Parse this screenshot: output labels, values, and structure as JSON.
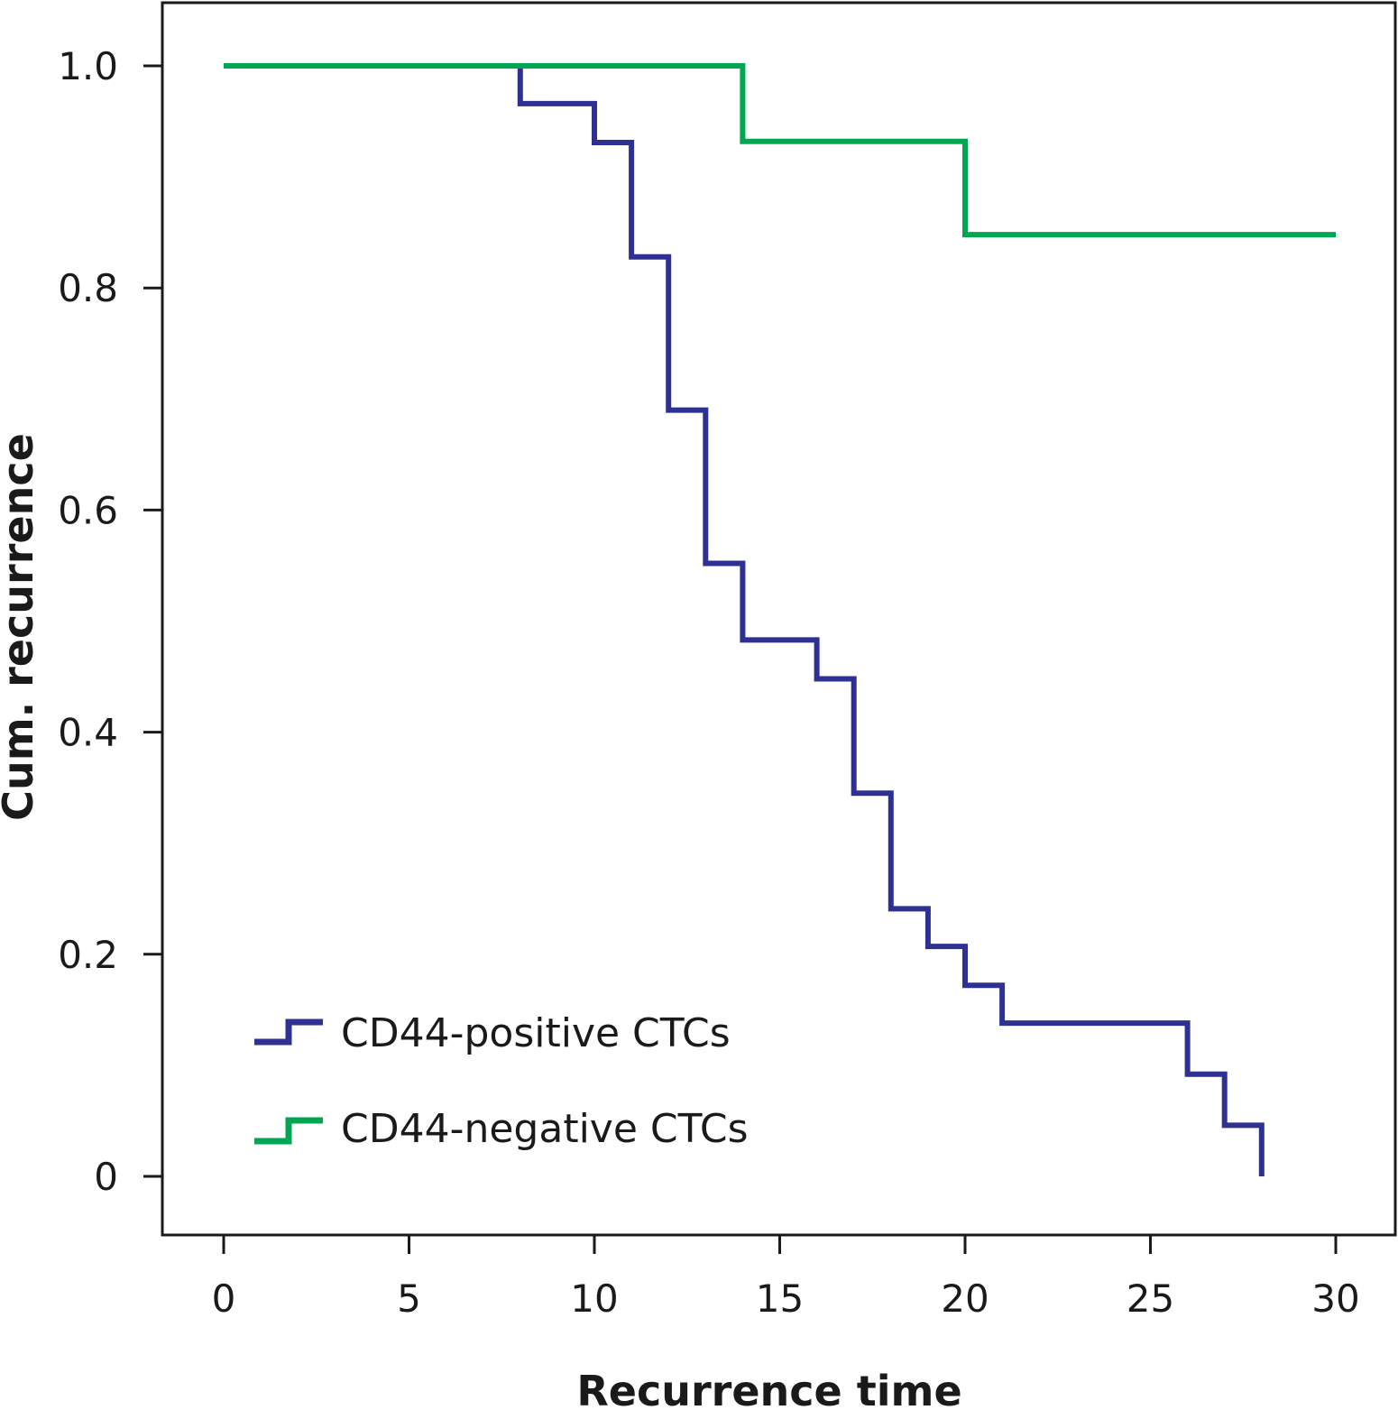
{
  "chart_data": {
    "type": "line",
    "step": true,
    "xlabel": "Recurrence time",
    "ylabel": "Cum. recurrence",
    "xlim": [
      0,
      30
    ],
    "ylim": [
      0,
      1.0
    ],
    "x_ticks": [
      0,
      5,
      10,
      15,
      20,
      25,
      30
    ],
    "x_tick_labels": [
      "0",
      "5",
      "10",
      "15",
      "20",
      "25",
      "30"
    ],
    "y_ticks": [
      0,
      0.2,
      0.4,
      0.6,
      0.8,
      1.0
    ],
    "y_tick_labels": [
      "0",
      "0.2",
      "0.4",
      "0.6",
      "0.8",
      "1.0"
    ],
    "grid": false,
    "legend_position": "bottom-left",
    "series": [
      {
        "name": "CD44-positive CTCs",
        "color": "#2e3192",
        "points": [
          [
            0,
            1.0
          ],
          [
            8,
            0.966
          ],
          [
            10,
            0.931
          ],
          [
            11,
            0.828
          ],
          [
            12,
            0.69
          ],
          [
            13,
            0.552
          ],
          [
            14,
            0.483
          ],
          [
            16,
            0.448
          ],
          [
            17,
            0.345
          ],
          [
            18,
            0.241
          ],
          [
            19,
            0.207
          ],
          [
            20,
            0.172
          ],
          [
            21,
            0.138
          ],
          [
            26,
            0.092
          ],
          [
            27,
            0.046
          ],
          [
            28,
            0.0
          ]
        ],
        "end_x": 28
      },
      {
        "name": "CD44-negative CTCs",
        "color": "#00a651",
        "points": [
          [
            0,
            1.0
          ],
          [
            14,
            0.932
          ],
          [
            20,
            0.848
          ]
        ],
        "end_x": 30
      }
    ]
  }
}
